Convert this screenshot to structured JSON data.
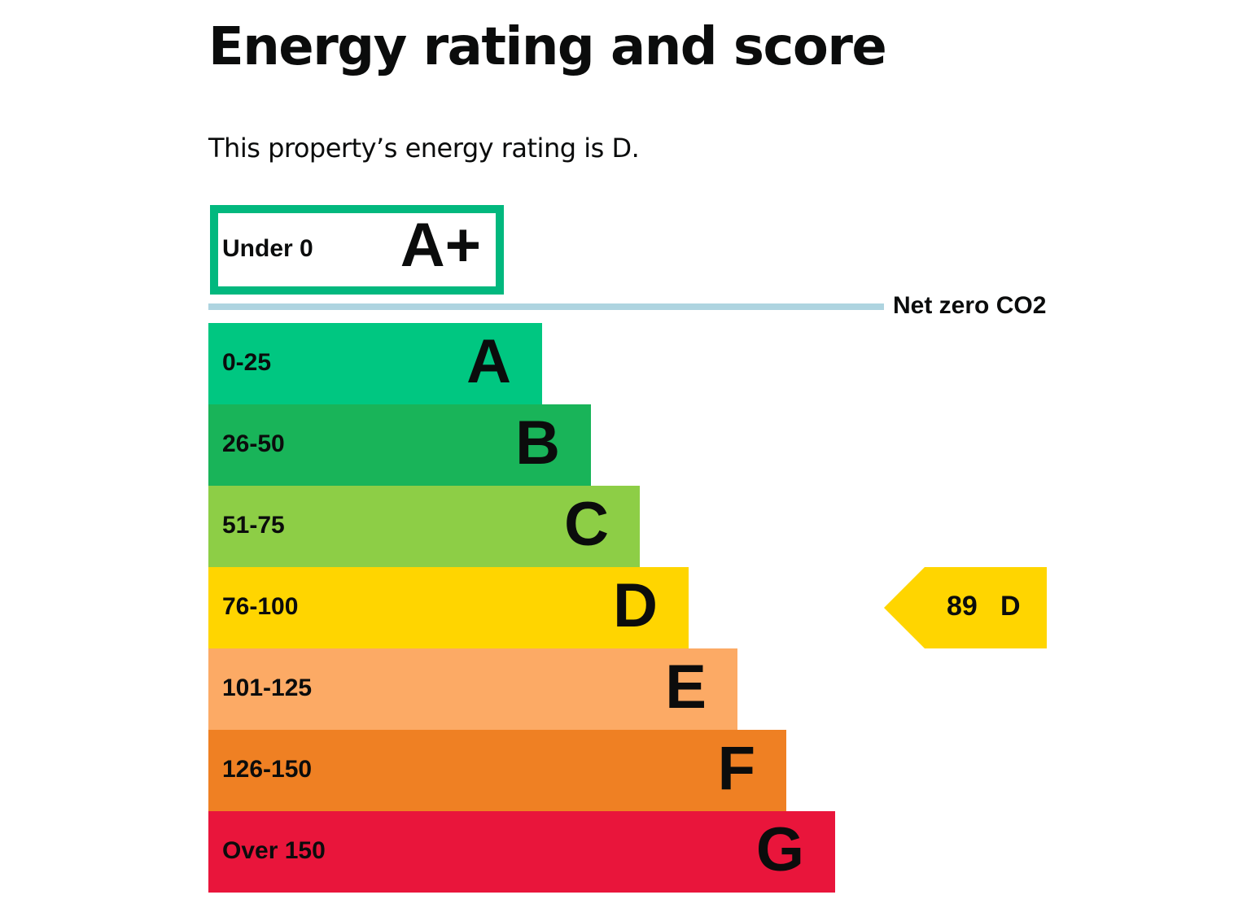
{
  "page": {
    "title": "Energy rating and score",
    "summary": "This property’s energy rating is D."
  },
  "chart_data": {
    "type": "bar",
    "orientation": "horizontal-stepped",
    "title": "",
    "categories": [
      "A+",
      "A",
      "B",
      "C",
      "D",
      "E",
      "F",
      "G"
    ],
    "bands": [
      {
        "letter": "A+",
        "range": "Under 0",
        "color": "#02b87e",
        "style": "outline"
      },
      {
        "letter": "A",
        "range": "0-25",
        "color": "#00c781",
        "style": "fill"
      },
      {
        "letter": "B",
        "range": "26-50",
        "color": "#19b459",
        "style": "fill"
      },
      {
        "letter": "C",
        "range": "51-75",
        "color": "#8dce46",
        "style": "fill"
      },
      {
        "letter": "D",
        "range": "76-100",
        "color": "#ffd500",
        "style": "fill"
      },
      {
        "letter": "E",
        "range": "101-125",
        "color": "#fcaa65",
        "style": "fill"
      },
      {
        "letter": "F",
        "range": "126-150",
        "color": "#ef8023",
        "style": "fill"
      },
      {
        "letter": "G",
        "range": "Over 150",
        "color": "#e9153b",
        "style": "fill"
      }
    ],
    "net_zero": {
      "label": "Net zero CO2",
      "color": "#aed4e0"
    },
    "current_rating": {
      "score": 89,
      "score_text": "89",
      "letter": "D",
      "color": "#ffd500"
    },
    "legend": "none",
    "grid": false
  }
}
